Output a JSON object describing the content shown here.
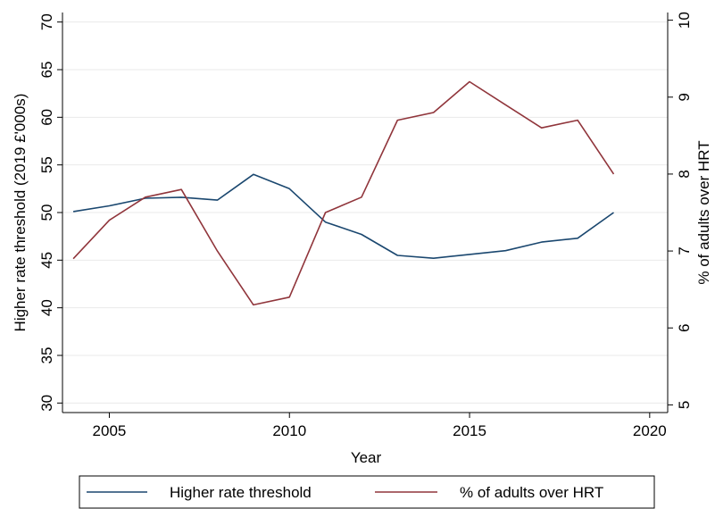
{
  "chart_data": {
    "type": "line",
    "title": "",
    "xlabel": "Year",
    "ylabel_left": "Higher rate threshold (2019 £'000s)",
    "ylabel_right": "% of adults over HRT",
    "x": [
      2004,
      2005,
      2006,
      2007,
      2008,
      2009,
      2010,
      2011,
      2012,
      2013,
      2014,
      2015,
      2016,
      2017,
      2018,
      2019
    ],
    "xlim": [
      2003.7,
      2020.5
    ],
    "xticks": [
      2005,
      2010,
      2015,
      2020
    ],
    "ylim_left": [
      29,
      71
    ],
    "yticks_left": [
      30,
      35,
      40,
      45,
      50,
      55,
      60,
      65,
      70
    ],
    "ylim_right": [
      4.9,
      10.1
    ],
    "yticks_right": [
      5,
      6,
      7,
      8,
      9,
      10
    ],
    "grid": true,
    "legend_position": "bottom",
    "series": [
      {
        "name": "Higher rate threshold",
        "axis": "left",
        "color": "#1a476f",
        "values": [
          50.1,
          50.7,
          51.5,
          51.6,
          51.3,
          54.0,
          52.5,
          49.0,
          47.7,
          45.5,
          45.2,
          45.6,
          46.0,
          46.9,
          47.3,
          50.0
        ]
      },
      {
        "name": "% of adults over HRT",
        "axis": "right",
        "color": "#90353b",
        "values": [
          6.9,
          7.4,
          7.7,
          7.8,
          7.0,
          6.3,
          6.4,
          7.5,
          7.7,
          8.7,
          8.8,
          9.2,
          8.9,
          8.6,
          8.7,
          8.0
        ]
      }
    ]
  }
}
